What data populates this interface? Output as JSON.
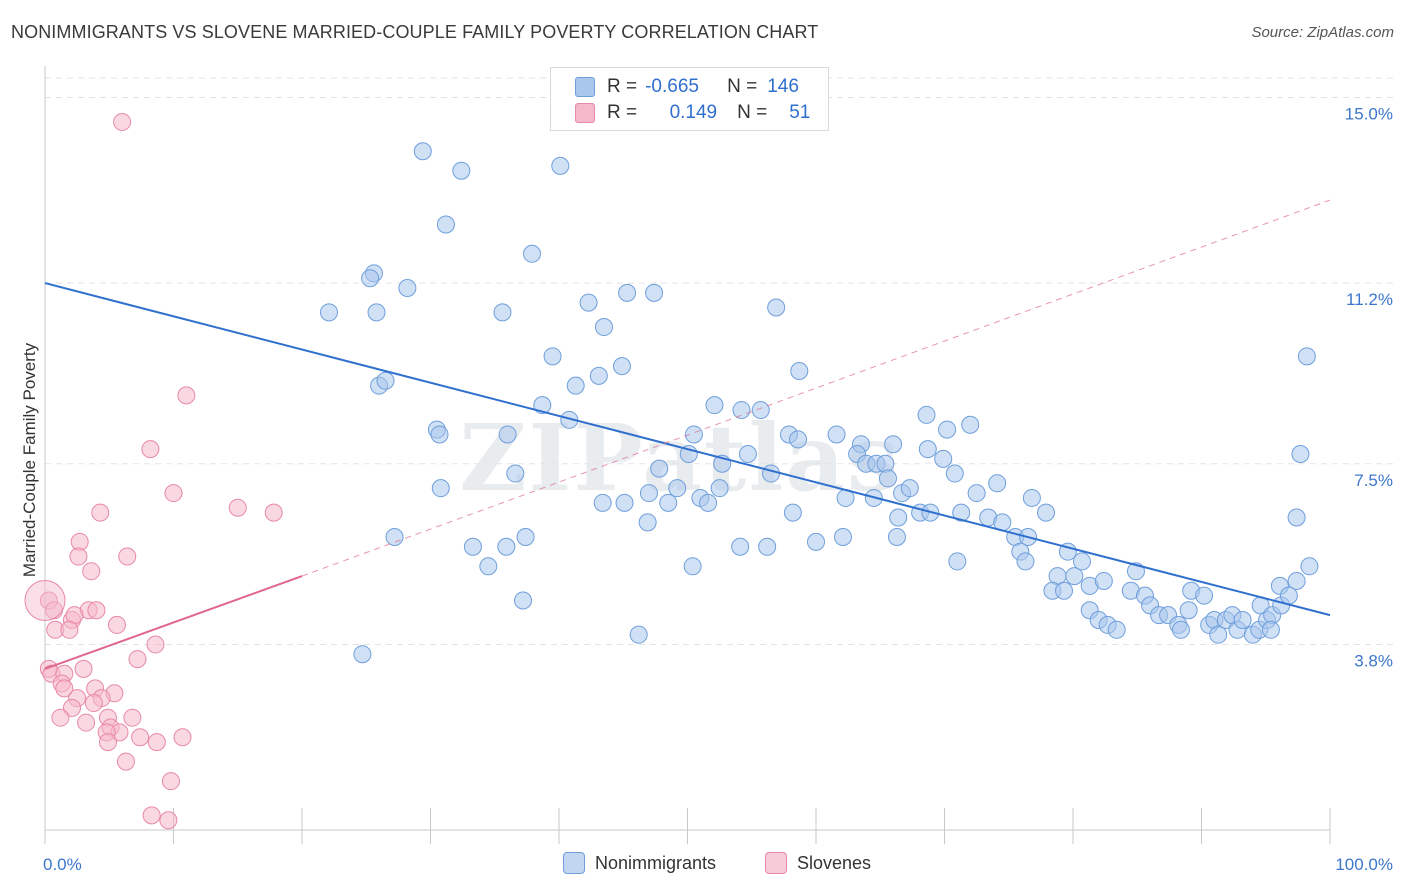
{
  "title": "NONIMMIGRANTS VS SLOVENE MARRIED-COUPLE FAMILY POVERTY CORRELATION CHART",
  "source": "Source: ZipAtlas.com",
  "watermark": "ZIPatlas",
  "legend": {
    "rows": [
      {
        "r_label": "R =",
        "r_value": "-0.665",
        "n_label": "N =",
        "n_value": "146"
      },
      {
        "r_label": "R =",
        "r_value": "0.149",
        "n_label": "N =",
        "n_value": "51"
      }
    ]
  },
  "bottom_legend": [
    "Nonimmigrants",
    "Slovenes"
  ],
  "colors": {
    "blue_fill": "#a9c7ec",
    "blue_stroke": "#6f9fdc",
    "blue_line": "#2f6fce",
    "pink_fill": "#f5b8cb",
    "pink_stroke": "#e889a6",
    "pink_line": "#e0668f",
    "grid": "#e3e3e3",
    "tick_text": "#3d77cc"
  },
  "chart_data": {
    "type": "scatter",
    "title": "NONIMMIGRANTS VS SLOVENE MARRIED-COUPLE FAMILY POVERTY CORRELATION CHART",
    "xlabel": "",
    "ylabel": "Married-Couple Family Poverty",
    "xlim": [
      0,
      100
    ],
    "ylim": [
      0,
      15.4
    ],
    "x_tick_labels": [
      "0.0%",
      "100.0%"
    ],
    "y_ticks": [
      3.8,
      7.5,
      11.2,
      15.0
    ],
    "y_tick_labels": [
      "3.8%",
      "7.5%",
      "11.2%",
      "15.0%"
    ],
    "grid": "horizontal dashed",
    "legend_position": "top-center",
    "series": [
      {
        "name": "Nonimmigrants",
        "color": "#a9c7ec",
        "trend": {
          "x": [
            0,
            100
          ],
          "y": [
            11.2,
            4.4
          ]
        },
        "points": [
          [
            29.4,
            13.9
          ],
          [
            32.4,
            13.5
          ],
          [
            40.1,
            13.6
          ],
          [
            31.2,
            12.4
          ],
          [
            37.9,
            11.8
          ],
          [
            25.6,
            11.4
          ],
          [
            25.3,
            11.3
          ],
          [
            28.2,
            11.1
          ],
          [
            22.1,
            10.6
          ],
          [
            25.8,
            10.6
          ],
          [
            35.6,
            10.6
          ],
          [
            42.3,
            10.8
          ],
          [
            45.3,
            11.0
          ],
          [
            47.4,
            11.0
          ],
          [
            56.9,
            10.7
          ],
          [
            43.5,
            10.3
          ],
          [
            39.5,
            9.7
          ],
          [
            44.9,
            9.5
          ],
          [
            58.7,
            9.4
          ],
          [
            98.2,
            9.7
          ],
          [
            26.0,
            9.1
          ],
          [
            26.5,
            9.2
          ],
          [
            41.3,
            9.1
          ],
          [
            43.1,
            9.3
          ],
          [
            38.7,
            8.7
          ],
          [
            52.1,
            8.7
          ],
          [
            54.2,
            8.6
          ],
          [
            40.8,
            8.4
          ],
          [
            55.7,
            8.6
          ],
          [
            68.6,
            8.5
          ],
          [
            70.2,
            8.2
          ],
          [
            72.0,
            8.3
          ],
          [
            30.5,
            8.2
          ],
          [
            30.7,
            8.1
          ],
          [
            36.0,
            8.1
          ],
          [
            50.5,
            8.1
          ],
          [
            57.9,
            8.1
          ],
          [
            58.6,
            8.0
          ],
          [
            61.6,
            8.1
          ],
          [
            63.5,
            7.9
          ],
          [
            63.2,
            7.7
          ],
          [
            66.0,
            7.9
          ],
          [
            63.9,
            7.5
          ],
          [
            64.7,
            7.5
          ],
          [
            68.7,
            7.8
          ],
          [
            69.9,
            7.6
          ],
          [
            65.4,
            7.5
          ],
          [
            97.7,
            7.7
          ],
          [
            36.6,
            7.3
          ],
          [
            47.8,
            7.4
          ],
          [
            50.1,
            7.7
          ],
          [
            54.7,
            7.7
          ],
          [
            52.7,
            7.5
          ],
          [
            56.5,
            7.3
          ],
          [
            70.8,
            7.3
          ],
          [
            74.1,
            7.1
          ],
          [
            65.6,
            7.2
          ],
          [
            64.5,
            6.8
          ],
          [
            62.3,
            6.8
          ],
          [
            66.7,
            6.9
          ],
          [
            67.3,
            7.0
          ],
          [
            72.5,
            6.9
          ],
          [
            30.8,
            7.0
          ],
          [
            49.2,
            7.0
          ],
          [
            51.0,
            6.8
          ],
          [
            52.5,
            7.0
          ],
          [
            47.0,
            6.9
          ],
          [
            48.5,
            6.7
          ],
          [
            51.6,
            6.7
          ],
          [
            43.4,
            6.7
          ],
          [
            45.1,
            6.7
          ],
          [
            58.2,
            6.5
          ],
          [
            46.9,
            6.3
          ],
          [
            66.4,
            6.4
          ],
          [
            68.1,
            6.5
          ],
          [
            68.9,
            6.5
          ],
          [
            71.3,
            6.5
          ],
          [
            73.4,
            6.4
          ],
          [
            74.5,
            6.3
          ],
          [
            75.5,
            6.0
          ],
          [
            76.5,
            6.0
          ],
          [
            76.8,
            6.8
          ],
          [
            77.9,
            6.5
          ],
          [
            97.4,
            6.4
          ],
          [
            27.2,
            6.0
          ],
          [
            37.4,
            6.0
          ],
          [
            60.0,
            5.9
          ],
          [
            56.2,
            5.8
          ],
          [
            54.1,
            5.8
          ],
          [
            66.3,
            6.0
          ],
          [
            62.1,
            6.0
          ],
          [
            33.3,
            5.8
          ],
          [
            35.9,
            5.8
          ],
          [
            34.5,
            5.4
          ],
          [
            50.4,
            5.4
          ],
          [
            37.2,
            4.7
          ],
          [
            24.7,
            3.6
          ],
          [
            46.2,
            4.0
          ],
          [
            71.0,
            5.5
          ],
          [
            75.9,
            5.7
          ],
          [
            76.3,
            5.5
          ],
          [
            79.6,
            5.7
          ],
          [
            80.7,
            5.5
          ],
          [
            80.1,
            5.2
          ],
          [
            78.8,
            5.2
          ],
          [
            78.4,
            4.9
          ],
          [
            79.3,
            4.9
          ],
          [
            81.3,
            5.0
          ],
          [
            82.4,
            5.1
          ],
          [
            84.9,
            5.3
          ],
          [
            98.4,
            5.4
          ],
          [
            97.4,
            5.1
          ],
          [
            96.1,
            5.0
          ],
          [
            81.3,
            4.5
          ],
          [
            82.0,
            4.3
          ],
          [
            82.7,
            4.2
          ],
          [
            83.4,
            4.1
          ],
          [
            84.5,
            4.9
          ],
          [
            85.6,
            4.8
          ],
          [
            86.0,
            4.6
          ],
          [
            86.7,
            4.4
          ],
          [
            87.4,
            4.4
          ],
          [
            88.2,
            4.2
          ],
          [
            88.4,
            4.1
          ],
          [
            89.0,
            4.5
          ],
          [
            89.2,
            4.9
          ],
          [
            90.2,
            4.8
          ],
          [
            90.6,
            4.2
          ],
          [
            91.0,
            4.3
          ],
          [
            91.3,
            4.0
          ],
          [
            91.9,
            4.3
          ],
          [
            92.4,
            4.4
          ],
          [
            92.8,
            4.1
          ],
          [
            93.2,
            4.3
          ],
          [
            94.0,
            4.0
          ],
          [
            94.5,
            4.1
          ],
          [
            94.6,
            4.6
          ],
          [
            95.1,
            4.3
          ],
          [
            95.5,
            4.4
          ],
          [
            96.2,
            4.6
          ],
          [
            96.8,
            4.8
          ],
          [
            95.4,
            4.1
          ]
        ]
      },
      {
        "name": "Slovenes",
        "color": "#f5b8cb",
        "trend": {
          "x": [
            0,
            20
          ],
          "y": [
            3.3,
            5.2
          ]
        },
        "trend_dashed": {
          "x": [
            20,
            100
          ],
          "y": [
            5.2,
            12.9
          ]
        },
        "points": [
          [
            6.0,
            14.5
          ],
          [
            11.0,
            8.9
          ],
          [
            8.2,
            7.8
          ],
          [
            10.0,
            6.9
          ],
          [
            4.3,
            6.5
          ],
          [
            15.0,
            6.6
          ],
          [
            17.8,
            6.5
          ],
          [
            2.7,
            5.9
          ],
          [
            2.6,
            5.6
          ],
          [
            6.4,
            5.6
          ],
          [
            3.6,
            5.3
          ],
          [
            0.3,
            4.7
          ],
          [
            0.7,
            4.5
          ],
          [
            3.4,
            4.5
          ],
          [
            4.0,
            4.5
          ],
          [
            2.1,
            4.3
          ],
          [
            2.3,
            4.4
          ],
          [
            0.8,
            4.1
          ],
          [
            1.9,
            4.1
          ],
          [
            5.6,
            4.2
          ],
          [
            8.6,
            3.8
          ],
          [
            7.2,
            3.5
          ],
          [
            0.3,
            3.3
          ],
          [
            0.5,
            3.2
          ],
          [
            1.5,
            3.2
          ],
          [
            3.0,
            3.3
          ],
          [
            1.3,
            3.0
          ],
          [
            1.5,
            2.9
          ],
          [
            3.9,
            2.9
          ],
          [
            5.4,
            2.8
          ],
          [
            2.5,
            2.7
          ],
          [
            4.4,
            2.7
          ],
          [
            3.8,
            2.6
          ],
          [
            2.1,
            2.5
          ],
          [
            1.2,
            2.3
          ],
          [
            3.2,
            2.2
          ],
          [
            4.9,
            2.3
          ],
          [
            6.8,
            2.3
          ],
          [
            5.1,
            2.1
          ],
          [
            5.8,
            2.0
          ],
          [
            4.8,
            2.0
          ],
          [
            7.4,
            1.9
          ],
          [
            10.7,
            1.9
          ],
          [
            4.9,
            1.8
          ],
          [
            8.7,
            1.8
          ],
          [
            6.3,
            1.4
          ],
          [
            9.8,
            1.0
          ],
          [
            8.3,
            0.3
          ],
          [
            9.6,
            0.2
          ]
        ]
      }
    ]
  }
}
